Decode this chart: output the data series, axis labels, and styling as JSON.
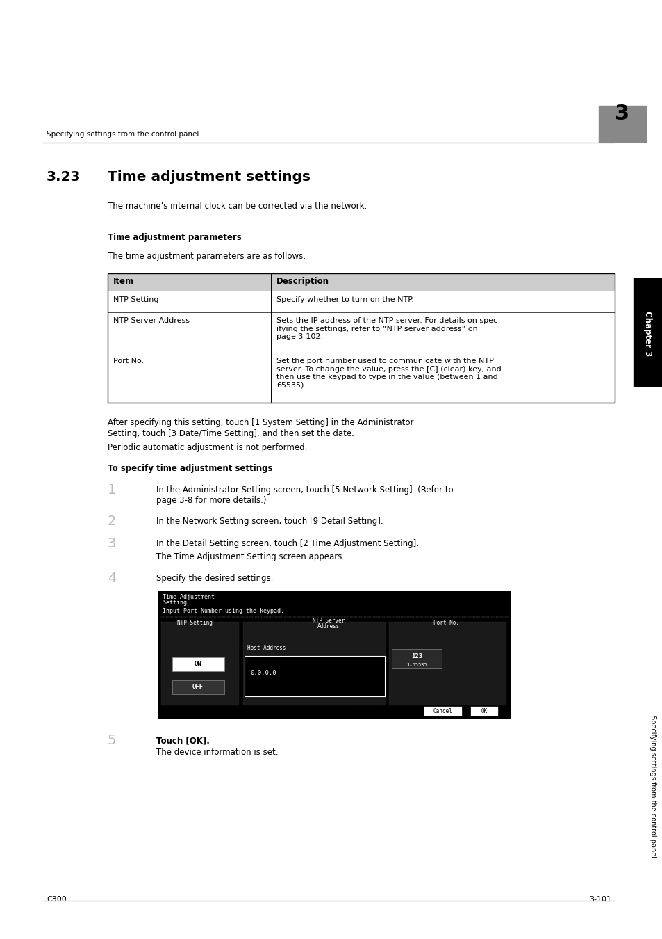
{
  "bg_color": "#ffffff",
  "header_text_left": "Specifying settings from the control panel",
  "header_number": "3",
  "header_number_bg": "#888888",
  "section_number": "3.23",
  "section_title": "Time adjustment settings",
  "intro_text": "The machine’s internal clock can be corrected via the network.",
  "subsection1_title": "Time adjustment parameters",
  "subsection1_intro": "The time adjustment parameters are as follows:",
  "table_col1_header": "Item",
  "table_col2_header": "Description",
  "row1_item": "NTP Setting",
  "row1_desc": "Specify whether to turn on the NTP.",
  "row2_item": "NTP Server Address",
  "row2_desc": "Sets the IP address of the NTP server. For details on spec-\nifying the settings, refer to “NTP server address” on\npage 3-102.",
  "row3_item": "Port No.",
  "row3_desc": "Set the port number used to communicate with the NTP\nserver. To change the value, press the [C] (clear) key, and\nthen use the keypad to type in the value (between 1 and\n65535).",
  "after_table_line1": "After specifying this setting, touch [1 System Setting] in the Administrator",
  "after_table_line2": "Setting, touch [3 Date/Time Setting], and then set the date.",
  "periodic_text": "Periodic automatic adjustment is not performed.",
  "subsection2_title": "To specify time adjustment settings",
  "step1_text_line1": "In the Administrator Setting screen, touch [5 Network Setting]. (Refer to",
  "step1_text_line2": "page 3-8 for more details.)",
  "step2_text": "In the Network Setting screen, touch [9 Detail Setting].",
  "step3_text": "In the Detail Setting screen, touch [2 Time Adjustment Setting].",
  "step3_sub": "The Time Adjustment Setting screen appears.",
  "step4_text": "Specify the desired settings.",
  "step5_text": "Touch [OK].",
  "step5_sub": "The device information is set.",
  "scr_title1": "Time Adjustment",
  "scr_title2": "Setting",
  "scr_prompt": "Input Port Number using the keypad.",
  "scr_col1": "NTP Setting",
  "scr_col2a": "NTP Server",
  "scr_col2b": "Address",
  "scr_col3": "Port No.",
  "scr_host": "Host Address",
  "scr_ip": "0.0.0.0",
  "scr_port": "123",
  "scr_range": "1-65535",
  "scr_on": "ON",
  "scr_off": "OFF",
  "scr_cancel": "Cancel",
  "scr_ok": "OK",
  "sidebar_chapter": "Chapter 3",
  "sidebar_label": "Specifying settings from the control panel",
  "footer_left": "C300",
  "footer_right": "3-101"
}
